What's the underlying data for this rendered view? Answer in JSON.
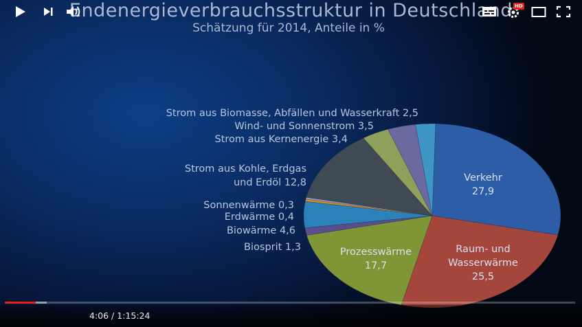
{
  "chart_data": {
    "type": "pie",
    "title": "Endenergieverbrauchsstruktur in Deutschland",
    "subtitle": "Schätzung für 2014,  Anteile in %",
    "slices": [
      {
        "label": "Verkehr",
        "value": 27.9,
        "display": "27,9",
        "color": "#2c5da6",
        "placement": "inside",
        "lines": [
          "Verkehr",
          "27,9"
        ]
      },
      {
        "label": "Raum- und Wasserwärme",
        "value": 25.5,
        "display": "25,5",
        "color": "#a5463c",
        "placement": "inside",
        "lines": [
          "Raum- und",
          "Wasserwärme",
          "25,5"
        ]
      },
      {
        "label": "Prozesswärme",
        "value": 17.7,
        "display": "17,7",
        "color": "#7e9636",
        "placement": "inside",
        "lines": [
          "Prozesswärme",
          "17,7"
        ]
      },
      {
        "label": "Biosprit",
        "value": 1.3,
        "display": "1,3",
        "color": "#584e8c",
        "placement": "outside",
        "text": "Biosprit 1,3"
      },
      {
        "label": "Biowärme",
        "value": 4.6,
        "display": "4,6",
        "color": "#2a82b8",
        "placement": "outside",
        "text": "Biowärme 4,6"
      },
      {
        "label": "Erdwärme",
        "value": 0.4,
        "display": "0,4",
        "color": "#d58a2b",
        "placement": "outside",
        "text": "Erdwärme 0,4"
      },
      {
        "label": "Sonnenwärme",
        "value": 0.3,
        "display": "0,3",
        "color": "#8fa2c0",
        "placement": "outside",
        "text": "Sonnenwärme 0,3"
      },
      {
        "label": "Strom aus Kohle, Erdgas und Erdöl",
        "value": 12.8,
        "display": "12,8",
        "color": "#3f4a55",
        "placement": "outside",
        "lines": [
          "Strom aus Kohle, Erdgas",
          "und Erdöl 12,8"
        ]
      },
      {
        "label": "Strom aus Kernenergie",
        "value": 3.4,
        "display": "3,4",
        "color": "#8ea15a",
        "placement": "outside",
        "text": "Strom aus Kernenergie 3,4"
      },
      {
        "label": "Wind- und Sonnenstrom",
        "value": 3.5,
        "display": "3,5",
        "color": "#6b6aa0",
        "placement": "outside",
        "text": "Wind- und Sonnenstrom 3,5"
      },
      {
        "label": "Strom aus Biomasse, Abfällen und Wasserkraft",
        "value": 2.5,
        "display": "2,5",
        "color": "#3f95c4",
        "placement": "outside",
        "text": "Strom aus Biomasse, Abfällen und Wasserkraft 2,5"
      }
    ],
    "legend": "none"
  },
  "player": {
    "current_time": "4:06",
    "separator": " / ",
    "duration": "1:15:24",
    "progress": 0.054,
    "buffered": 0.074,
    "hd_badge": "HD",
    "icons": [
      "play-icon",
      "next-icon",
      "volume-icon",
      "subtitles-icon",
      "settings-icon",
      "miniplayer-icon",
      "fullscreen-icon"
    ]
  }
}
